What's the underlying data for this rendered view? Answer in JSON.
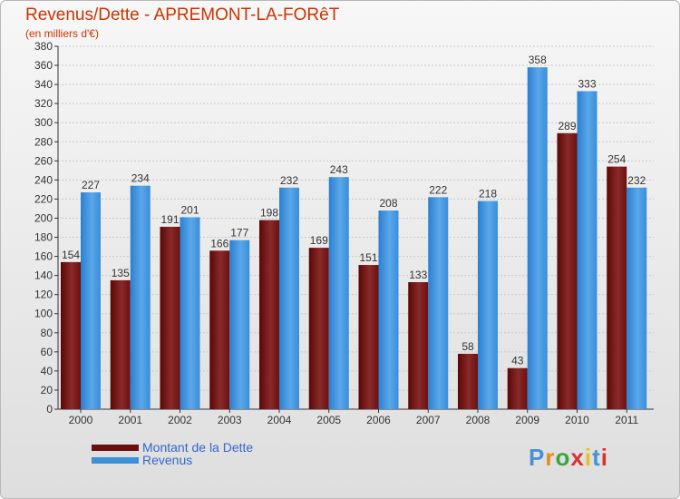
{
  "title": "Revenus/Dette - APREMONT-LA-FORêT",
  "subtitle": "(en milliers d'€)",
  "brand": "Proxiti",
  "colors": {
    "dette": "#6b0e0e",
    "revenus": "#3d8fd8",
    "axis": "#333333",
    "grid": "#c8c8c8"
  },
  "chart_data": {
    "type": "bar",
    "categories": [
      "2000",
      "2001",
      "2002",
      "2003",
      "2004",
      "2005",
      "2006",
      "2007",
      "2008",
      "2009",
      "2010",
      "2011"
    ],
    "series": [
      {
        "name": "Montant de la Dette",
        "values": [
          154,
          135,
          191,
          166,
          198,
          169,
          151,
          133,
          58,
          43,
          289,
          254
        ]
      },
      {
        "name": "Revenus",
        "values": [
          227,
          234,
          201,
          177,
          232,
          243,
          208,
          222,
          218,
          358,
          333,
          232
        ]
      }
    ],
    "ylim": [
      0,
      380
    ],
    "ytick_step": 20,
    "grid": true,
    "legend_position": "bottom-left"
  }
}
